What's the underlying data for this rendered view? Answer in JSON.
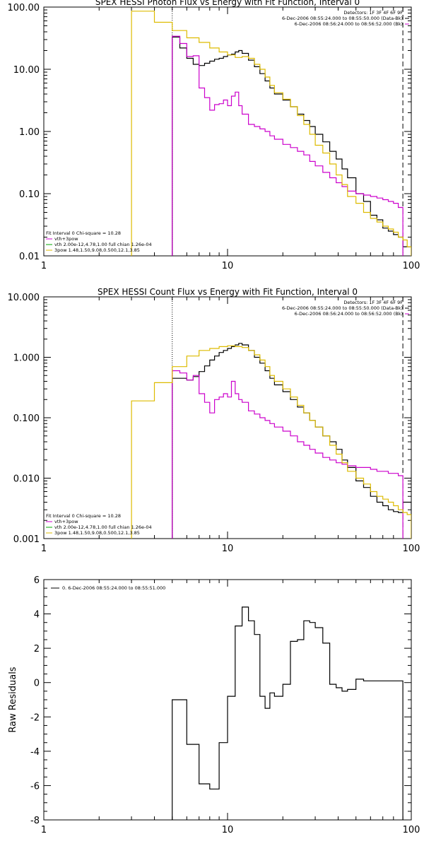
{
  "colors": {
    "observed": "#000000",
    "total": "#cc00cc",
    "vth": "#00aa00",
    "bpow": "#ddbb00",
    "axis": "#000000"
  },
  "chart_data": [
    {
      "type": "line",
      "title": "SPEX HESSI Photon Flux vs Energy with Fit Function, Interval 0",
      "xscale": "log",
      "yscale": "log",
      "xlim": [
        1,
        100
      ],
      "ylim": [
        0.01,
        100
      ],
      "xticks": [
        "1",
        "10",
        "100"
      ],
      "yticks": [
        {
          "v": 0.01,
          "label": "0.01"
        },
        {
          "v": 0.1,
          "label": "0.10"
        },
        {
          "v": 1,
          "label": "1.00"
        },
        {
          "v": 10,
          "label": "10.00"
        },
        {
          "v": 100,
          "label": "100.00"
        }
      ],
      "xlabel": "",
      "ylabel": "",
      "vlines": [
        {
          "x": 5.0,
          "style": "dotted"
        },
        {
          "x": 90.0,
          "style": "dashed"
        }
      ],
      "legend_top": {
        "lines": [
          "Detectors: 1F 3F 4F 6F 9F",
          "6-Dec-2006 08:55:24.000 to 08:55:50.000 (Data-Bk)",
          "6-Dec-2006 08:56:24.000 to 08:56:52.000 (Bk)"
        ],
        "placement": "top-right"
      },
      "legend_bottom": {
        "lines": [
          "Fit Interval 0   Chi-square = 10.28",
          "vth+3pow",
          "vth 2.00e-12,4.78,1.00  full chian 1.26e-04",
          "3pow 1.48,1.50,9.08,0.500,12.1,3.85"
        ],
        "placement": "bottom-left"
      },
      "series": [
        {
          "name": "Data-Bk",
          "color_key": "observed",
          "edges": [
            5.0,
            5.5,
            6.0,
            6.5,
            7.0,
            7.5,
            8.0,
            8.5,
            9.0,
            9.5,
            10.0,
            10.5,
            11.0,
            11.5,
            12.0,
            13.0,
            14.0,
            15.0,
            16.0,
            17.0,
            18.0,
            20.0,
            22.0,
            24.0,
            26.0,
            28.0,
            30.0,
            33.0,
            36.0,
            39.0,
            42.0,
            45.0,
            50.0,
            55.0,
            60.0,
            65.0,
            70.0,
            75.0,
            80.0,
            85.0,
            90.0,
            100.0
          ],
          "values": [
            33.0,
            22.0,
            15.0,
            12.0,
            11.5,
            12.5,
            13.5,
            14.5,
            15.0,
            16.0,
            17.0,
            17.5,
            19.0,
            20.0,
            18.0,
            14.0,
            11.0,
            8.5,
            6.5,
            5.0,
            4.0,
            3.2,
            2.5,
            1.9,
            1.5,
            1.2,
            0.9,
            0.68,
            0.48,
            0.36,
            0.25,
            0.18,
            0.1,
            0.075,
            0.045,
            0.038,
            0.028,
            0.025,
            0.022,
            0.02,
            0.014
          ]
        },
        {
          "name": "vth+3pow",
          "color_key": "total",
          "edges": [
            5.0,
            5.5,
            6.0,
            6.5,
            7.0,
            7.5,
            8.0,
            8.5,
            9.0,
            9.5,
            10.0,
            10.5,
            11.0,
            11.5,
            12.0,
            13.0,
            14.0,
            15.0,
            16.0,
            17.0,
            18.0,
            20.0,
            22.0,
            24.0,
            26.0,
            28.0,
            30.0,
            33.0,
            36.0,
            39.0,
            42.0,
            45.0,
            50.0,
            55.0,
            60.0,
            65.0,
            70.0,
            75.0,
            80.0,
            85.0,
            90.0
          ],
          "values": [
            34.0,
            26.0,
            16.0,
            16.5,
            5.0,
            3.5,
            2.2,
            2.7,
            2.8,
            3.2,
            2.6,
            3.7,
            4.3,
            2.6,
            1.9,
            1.3,
            1.2,
            1.1,
            1.0,
            0.85,
            0.75,
            0.62,
            0.55,
            0.48,
            0.42,
            0.33,
            0.28,
            0.22,
            0.18,
            0.15,
            0.13,
            0.11,
            0.1,
            0.095,
            0.09,
            0.085,
            0.08,
            0.075,
            0.07,
            0.06
          ]
        },
        {
          "name": "vth",
          "color_key": "vth",
          "edges": [],
          "values": []
        },
        {
          "name": "3pow",
          "color_key": "bpow",
          "edges": [
            3.0,
            4.0,
            5.0,
            6.0,
            7.0,
            8.0,
            9.0,
            10.0,
            11.0,
            12.0,
            13.0,
            14.0,
            15.0,
            16.0,
            17.0,
            18.0,
            20.0,
            22.0,
            24.0,
            26.0,
            28.0,
            30.0,
            33.0,
            36.0,
            39.0,
            42.0,
            45.0,
            50.0,
            55.0,
            60.0,
            65.0,
            70.0,
            75.0,
            80.0,
            85.0,
            90.0,
            95.0,
            100.0
          ],
          "values": [
            86.0,
            57.0,
            42.0,
            32.0,
            27.0,
            22.0,
            19.0,
            17.0,
            15.5,
            16.0,
            15.0,
            12.0,
            10.0,
            7.5,
            5.5,
            4.2,
            3.3,
            2.5,
            1.8,
            1.3,
            0.9,
            0.6,
            0.45,
            0.3,
            0.2,
            0.14,
            0.09,
            0.07,
            0.05,
            0.04,
            0.035,
            0.03,
            0.027,
            0.024,
            0.02,
            0.018,
            0.014
          ]
        }
      ]
    },
    {
      "type": "line",
      "title": "SPEX HESSI Count Flux vs Energy with Fit Function, Interval 0",
      "xscale": "log",
      "yscale": "log",
      "xlim": [
        1,
        100
      ],
      "ylim": [
        0.001,
        10
      ],
      "xticks": [
        "1",
        "10",
        "100"
      ],
      "yticks": [
        {
          "v": 0.001,
          "label": "0.001"
        },
        {
          "v": 0.01,
          "label": "0.010"
        },
        {
          "v": 0.1,
          "label": "0.100"
        },
        {
          "v": 1,
          "label": "1.000"
        },
        {
          "v": 10,
          "label": "10.000"
        }
      ],
      "xlabel": "",
      "ylabel": "",
      "vlines": [
        {
          "x": 5.0,
          "style": "dotted"
        },
        {
          "x": 90.0,
          "style": "dashed"
        }
      ],
      "legend_top": {
        "lines": [
          "Detectors: 1F 3F 4F 6F 9F",
          "6-Dec-2006 08:55:24.000 to 08:55:50.000 (Data-Bk)",
          "6-Dec-2006 08:56:24.000 to 08:56:52.000 (Bk)"
        ],
        "placement": "top-right"
      },
      "legend_bottom": {
        "lines": [
          "Fit Interval 0   Chi-square = 10.28",
          "vth+3pow",
          "vth 2.00e-12,4.78,1.00  full chian 1.26e-04",
          "3pow 1.48,1.50,9.08,0.500,12.1,3.85"
        ],
        "placement": "bottom-left"
      },
      "series": [
        {
          "name": "Data-Bk",
          "color_key": "observed",
          "edges": [
            5.0,
            5.5,
            6.0,
            6.5,
            7.0,
            7.5,
            8.0,
            8.5,
            9.0,
            9.5,
            10.0,
            10.5,
            11.0,
            11.5,
            12.0,
            13.0,
            14.0,
            15.0,
            16.0,
            17.0,
            18.0,
            20.0,
            22.0,
            24.0,
            26.0,
            28.0,
            30.0,
            33.0,
            36.0,
            39.0,
            42.0,
            45.0,
            50.0,
            55.0,
            60.0,
            65.0,
            70.0,
            75.0,
            80.0,
            85.0,
            90.0,
            100.0
          ],
          "values": [
            0.45,
            0.45,
            0.42,
            0.48,
            0.58,
            0.72,
            0.9,
            1.05,
            1.2,
            1.3,
            1.4,
            1.5,
            1.6,
            1.7,
            1.6,
            1.3,
            1.0,
            0.8,
            0.6,
            0.45,
            0.35,
            0.27,
            0.2,
            0.15,
            0.12,
            0.09,
            0.07,
            0.05,
            0.04,
            0.03,
            0.02,
            0.015,
            0.009,
            0.007,
            0.005,
            0.004,
            0.0035,
            0.003,
            0.0028,
            0.0027,
            0.004
          ]
        },
        {
          "name": "vth+3pow",
          "color_key": "total",
          "edges": [
            5.0,
            5.5,
            6.0,
            6.5,
            7.0,
            7.5,
            8.0,
            8.5,
            9.0,
            9.5,
            10.0,
            10.5,
            11.0,
            11.5,
            12.0,
            13.0,
            14.0,
            15.0,
            16.0,
            17.0,
            18.0,
            20.0,
            22.0,
            24.0,
            26.0,
            28.0,
            30.0,
            33.0,
            36.0,
            39.0,
            42.0,
            45.0,
            50.0,
            55.0,
            60.0,
            65.0,
            70.0,
            75.0,
            80.0,
            85.0,
            90.0
          ],
          "values": [
            0.6,
            0.55,
            0.42,
            0.5,
            0.25,
            0.18,
            0.12,
            0.2,
            0.22,
            0.25,
            0.22,
            0.4,
            0.25,
            0.2,
            0.18,
            0.13,
            0.115,
            0.1,
            0.09,
            0.08,
            0.07,
            0.06,
            0.05,
            0.04,
            0.035,
            0.03,
            0.026,
            0.022,
            0.02,
            0.018,
            0.017,
            0.016,
            0.015,
            0.015,
            0.014,
            0.013,
            0.013,
            0.012,
            0.012,
            0.011
          ]
        },
        {
          "name": "vth",
          "color_key": "vth",
          "edges": [],
          "values": []
        },
        {
          "name": "3pow",
          "color_key": "bpow",
          "edges": [
            3.0,
            4.0,
            5.0,
            6.0,
            7.0,
            8.0,
            9.0,
            10.0,
            11.0,
            12.0,
            13.0,
            14.0,
            15.0,
            16.0,
            17.0,
            18.0,
            20.0,
            22.0,
            24.0,
            26.0,
            28.0,
            30.0,
            33.0,
            36.0,
            39.0,
            42.0,
            45.0,
            50.0,
            55.0,
            60.0,
            65.0,
            70.0,
            75.0,
            80.0,
            85.0,
            90.0,
            95.0,
            100.0
          ],
          "values": [
            0.19,
            0.38,
            0.7,
            1.05,
            1.3,
            1.4,
            1.5,
            1.55,
            1.5,
            1.45,
            1.3,
            1.1,
            0.9,
            0.7,
            0.5,
            0.4,
            0.3,
            0.22,
            0.16,
            0.12,
            0.09,
            0.07,
            0.05,
            0.035,
            0.025,
            0.018,
            0.013,
            0.01,
            0.008,
            0.006,
            0.005,
            0.0045,
            0.004,
            0.0035,
            0.003,
            0.0027,
            0.0025
          ]
        }
      ]
    },
    {
      "type": "line",
      "title": "",
      "xscale": "log",
      "yscale": "linear",
      "xlim": [
        1,
        100
      ],
      "ylim": [
        -8,
        6
      ],
      "xticks": [
        "1",
        "10",
        "100"
      ],
      "yticks": [
        {
          "v": -8,
          "label": "-8"
        },
        {
          "v": -6,
          "label": "-6"
        },
        {
          "v": -4,
          "label": "-4"
        },
        {
          "v": -2,
          "label": "-2"
        },
        {
          "v": 0,
          "label": "0"
        },
        {
          "v": 2,
          "label": "2"
        },
        {
          "v": 4,
          "label": "4"
        },
        {
          "v": 6,
          "label": "6"
        }
      ],
      "xlabel": "",
      "ylabel": "Raw Residuals",
      "legend_top": {
        "lines": [
          "0.  6-Dec-2006 08:55:24.000 to 08:55:51.000"
        ],
        "placement": "top-left"
      },
      "series": [
        {
          "name": "0.  6-Dec-2006 08:55:24.000 to 08:55:51.000",
          "color_key": "observed",
          "edges": [
            5.0,
            6.0,
            7.0,
            8.0,
            9.0,
            10.0,
            11.0,
            12.0,
            13.0,
            14.0,
            15.0,
            16.0,
            17.0,
            18.0,
            20.0,
            22.0,
            24.0,
            26.0,
            28.0,
            30.0,
            33.0,
            36.0,
            39.0,
            42.0,
            45.0,
            50.0,
            55.0,
            60.0,
            65.0,
            70.0,
            75.0,
            80.0,
            90.0
          ],
          "values": [
            -1.0,
            -3.6,
            -5.9,
            -6.2,
            -3.5,
            -0.8,
            3.3,
            4.4,
            3.6,
            2.8,
            -0.8,
            -1.5,
            -0.6,
            -0.8,
            -0.1,
            2.4,
            2.5,
            3.6,
            3.5,
            3.2,
            2.3,
            -0.1,
            -0.3,
            -0.5,
            -0.4,
            0.2,
            0.1,
            0.1,
            0.1,
            0.1,
            0.1,
            0.1
          ],
          "step": true
        }
      ]
    }
  ]
}
